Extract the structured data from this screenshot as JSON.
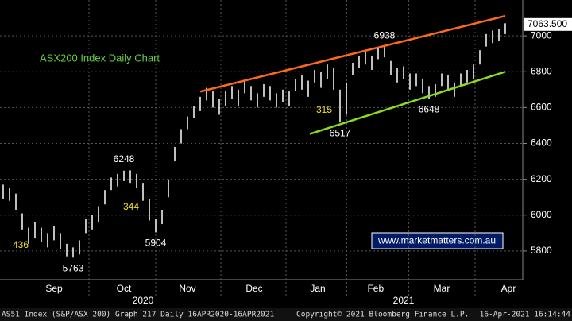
{
  "chart_data": {
    "type": "hilo",
    "title": "ASX200 Index Daily Chart",
    "series": [
      {
        "color": "#ffffff",
        "high": [
          6170,
          6150,
          6120,
          6010,
          5930,
          5960,
          5930,
          5900,
          5940,
          5900,
          5840,
          5820,
          5860,
          5980,
          6000,
          6050,
          6140,
          6210,
          6230,
          6248,
          6250,
          6230,
          6180,
          6090,
          5980,
          6030,
          6200,
          6380,
          6480,
          6550,
          6610,
          6660,
          6710,
          6690,
          6650,
          6690,
          6720,
          6700,
          6750,
          6720,
          6680,
          6730,
          6720,
          6680,
          6700,
          6690,
          6760,
          6780,
          6750,
          6810,
          6800,
          6840,
          6820,
          6700,
          6740,
          6850,
          6890,
          6910,
          6890,
          6930,
          6938,
          6860,
          6820,
          6830,
          6790,
          6790,
          6760,
          6720,
          6730,
          6790,
          6780,
          6740,
          6790,
          6810,
          6840,
          6920,
          7010,
          7030,
          7040,
          7070
        ],
        "low": [
          6090,
          6080,
          6030,
          5920,
          5840,
          5870,
          5850,
          5820,
          5860,
          5810,
          5770,
          5763,
          5780,
          5900,
          5920,
          5960,
          6060,
          6140,
          6160,
          6190,
          6180,
          6150,
          6080,
          5970,
          5904,
          5950,
          6100,
          6300,
          6400,
          6480,
          6540,
          6580,
          6640,
          6600,
          6560,
          6610,
          6650,
          6610,
          6680,
          6640,
          6600,
          6660,
          6640,
          6600,
          6630,
          6610,
          6690,
          6700,
          6660,
          6740,
          6710,
          6760,
          6700,
          6517,
          6560,
          6780,
          6820,
          6840,
          6810,
          6870,
          6880,
          6780,
          6740,
          6760,
          6700,
          6720,
          6680,
          6648,
          6660,
          6720,
          6700,
          6660,
          6720,
          6740,
          6760,
          6840,
          6940,
          6960,
          6970,
          7010
        ]
      }
    ],
    "ylim": [
      5640,
      7200
    ],
    "yticks": [
      5800,
      6000,
      6200,
      6400,
      6600,
      6800,
      7000
    ],
    "grid": true,
    "xticks": [
      {
        "value": 8,
        "label": "Sep"
      },
      {
        "value": 19,
        "label": "Oct"
      },
      {
        "value": 29,
        "label": "Nov"
      },
      {
        "value": 39.5,
        "label": "Dec"
      },
      {
        "value": 49.5,
        "label": "Jan"
      },
      {
        "value": 58.6,
        "label": "Feb"
      },
      {
        "value": 69,
        "label": "Mar"
      },
      {
        "value": 79.5,
        "label": "Apr"
      }
    ],
    "year_labels": [
      {
        "value": 22,
        "label": "2020"
      },
      {
        "value": 63,
        "label": "2021"
      }
    ],
    "trendlines": [
      {
        "color": "#ff6a1a",
        "x": [
          31,
          79
        ],
        "y": [
          6689,
          7111
        ]
      },
      {
        "color": "#88dd22",
        "x": [
          48.25,
          79
        ],
        "y": [
          6453,
          6800
        ]
      }
    ],
    "point_labels": [
      {
        "index": 19,
        "value": 6248,
        "side": "top"
      },
      {
        "index": 11,
        "value": 5763,
        "side": "bottom"
      },
      {
        "index": 24,
        "value": 5904,
        "side": "bottom"
      },
      {
        "index": 53,
        "value": 6517,
        "side": "bottom"
      },
      {
        "index": 60,
        "value": 6938,
        "side": "top"
      },
      {
        "index": 67,
        "value": 6648,
        "side": "bottom"
      }
    ],
    "move_labels": [
      {
        "value": 436
      },
      {
        "value": 344
      },
      {
        "value": 315
      }
    ],
    "last_price": {
      "value": 7063.5,
      "label": "7063.500"
    },
    "website": "www.marketmatters.com.au",
    "footer": [
      "AS51 Index (S&P/ASX 200) Graph 217  Daily 16APR2020-16APR2021",
      "Copyright© 2021 Bloomberg Finance L.P.",
      "16-Apr-2021 16:14:44"
    ]
  }
}
